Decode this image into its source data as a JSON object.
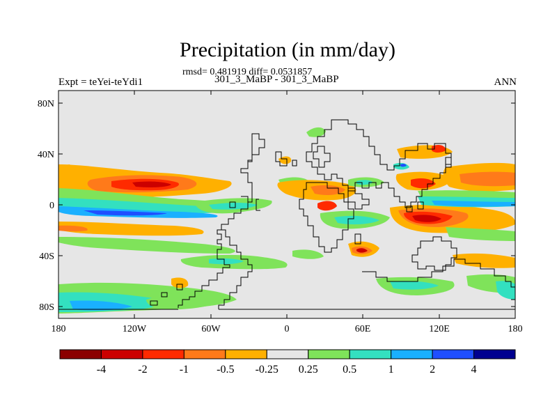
{
  "header": {
    "title": "Precipitation (in mm/day)",
    "stats": "rmsd= 0.481919 diff= 0.0531857",
    "subtitle": "301_3_MaBP - 301_3_MaBP",
    "left_label": "Expt = teYei-teYdi1",
    "right_label": "ANN"
  },
  "axes": {
    "lat_ticks": [
      "80N",
      "40N",
      "0",
      "40S",
      "80S"
    ],
    "lon_ticks": [
      "180",
      "120W",
      "60W",
      "0",
      "60E",
      "120E",
      "180"
    ]
  },
  "colorbar": {
    "labels": [
      "-4",
      "-2",
      "-1",
      "-0.5",
      "-0.25",
      "0.25",
      "0.5",
      "1",
      "2",
      "4"
    ],
    "colors": [
      "#8b0000",
      "#cc0000",
      "#ff2a00",
      "#ff7a1a",
      "#ffb000",
      "#e6e6e6",
      "#7fe35a",
      "#33e0c0",
      "#1ab0ff",
      "#1f4fff",
      "#000090"
    ]
  },
  "map": {
    "background": "#e6e6e6",
    "lat_range": [
      -90,
      90
    ],
    "lon_range": [
      -180,
      180
    ]
  }
}
